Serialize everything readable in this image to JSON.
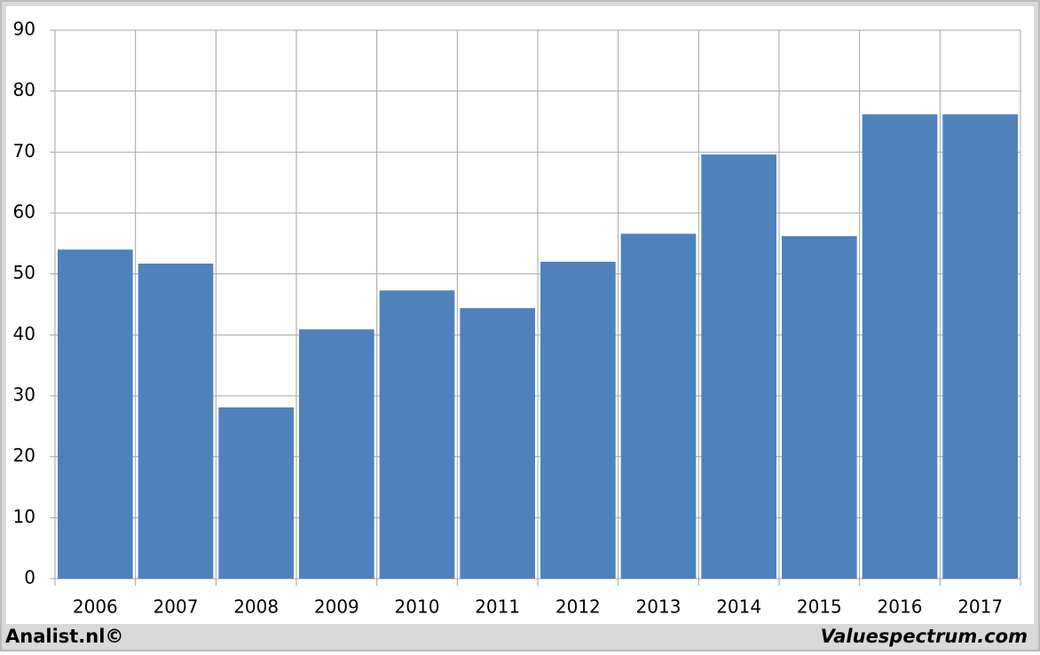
{
  "chart_data": {
    "type": "bar",
    "categories": [
      "2006",
      "2007",
      "2008",
      "2009",
      "2010",
      "2011",
      "2012",
      "2013",
      "2014",
      "2015",
      "2016",
      "2017"
    ],
    "values": [
      54.0,
      51.7,
      28.1,
      40.9,
      47.3,
      44.4,
      52.0,
      56.6,
      69.6,
      56.2,
      76.2,
      76.2
    ],
    "color": "#4f81bd",
    "ylim": [
      0,
      90
    ],
    "yticks": [
      0,
      10,
      20,
      30,
      40,
      50,
      60,
      70,
      80,
      90
    ],
    "grid": true
  },
  "footer_left": "Analist.nl©",
  "footer_right": "Valuespectrum.com"
}
